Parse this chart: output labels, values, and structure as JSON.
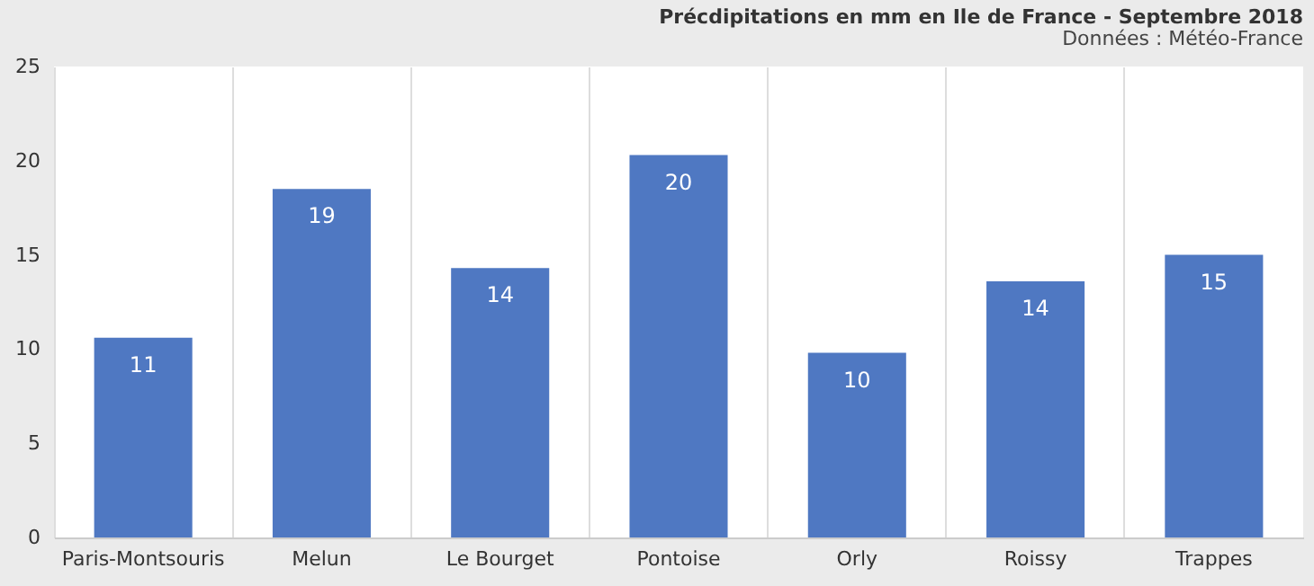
{
  "chart_data": {
    "type": "bar",
    "title": "Précdipitations en mm en Ile de France - Septembre 2018",
    "subtitle": "Données : Météo-France",
    "categories": [
      "Paris-Montsouris",
      "Melun",
      "Le Bourget",
      "Pontoise",
      "Orly",
      "Roissy",
      "Trappes"
    ],
    "values": [
      10.6,
      18.5,
      14.3,
      20.3,
      9.8,
      13.6,
      15.0
    ],
    "value_labels": [
      "11",
      "19",
      "14",
      "20",
      "10",
      "14",
      "15"
    ],
    "color": "#4f78c2",
    "ylim": [
      0,
      25
    ],
    "yticks": [
      0,
      5,
      10,
      15,
      20,
      25
    ],
    "grid": "x"
  }
}
